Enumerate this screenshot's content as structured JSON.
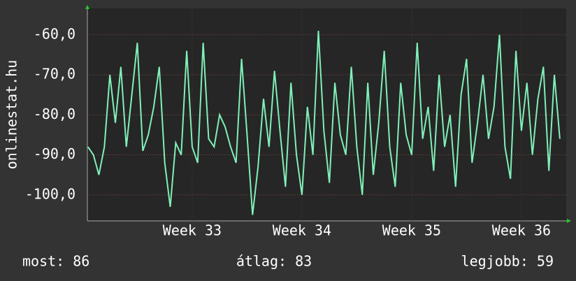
{
  "chart_data": {
    "type": "line",
    "y_label": "onlinestat.hu",
    "x": [
      32.55,
      32.6,
      32.65,
      32.7,
      32.75,
      32.8,
      32.85,
      32.9,
      32.95,
      33,
      33.05,
      33.1,
      33.15,
      33.2,
      33.25,
      33.3,
      33.35,
      33.4,
      33.45,
      33.5,
      33.55,
      33.6,
      33.65,
      33.7,
      33.75,
      33.8,
      33.85,
      33.9,
      33.95,
      34,
      34.05,
      34.1,
      34.15,
      34.2,
      34.25,
      34.3,
      34.35,
      34.4,
      34.45,
      34.5,
      34.55,
      34.6,
      34.65,
      34.7,
      34.75,
      34.8,
      34.85,
      34.9,
      34.95,
      35,
      35.05,
      35.1,
      35.15,
      35.2,
      35.25,
      35.3,
      35.35,
      35.4,
      35.45,
      35.5,
      35.55,
      35.6,
      35.65,
      35.7,
      35.75,
      35.8,
      35.85,
      35.9,
      35.95,
      36,
      36.05,
      36.1,
      36.15,
      36.2,
      36.25,
      36.3,
      36.35,
      36.4,
      36.45,
      36.5,
      36.55,
      36.6,
      36.65,
      36.7,
      36.75,
      36.8,
      36.85
    ],
    "series": [
      {
        "color": "#7ff0b8",
        "values": [
          -88,
          -90,
          -95,
          -88,
          -70,
          -82,
          -68,
          -88,
          -75,
          -62,
          -89,
          -85,
          -78,
          -68,
          -92,
          -103,
          -87,
          -90,
          -64,
          -88,
          -92,
          -62,
          -86,
          -88,
          -80,
          -83,
          -88,
          -92,
          -66,
          -85,
          -105,
          -93,
          -76,
          -88,
          -69,
          -84,
          -98,
          -72,
          -90,
          -100,
          -78,
          -90,
          -59,
          -84,
          -97,
          -72,
          -85,
          -90,
          -68,
          -88,
          -100,
          -72,
          -95,
          -82,
          -64,
          -88,
          -98,
          -72,
          -85,
          -90,
          -62,
          -86,
          -78,
          -94,
          -70,
          -88,
          -80,
          -98,
          -75,
          -66,
          -92,
          -82,
          -70,
          -86,
          -78,
          -60,
          -88,
          -96,
          -64,
          -84,
          -72,
          -90,
          -76,
          -68,
          -94,
          -70,
          -86
        ]
      }
    ],
    "xlim": [
      32.545,
      36.908
    ],
    "xticks": [
      {
        "value": 33.5,
        "label": "Week 33"
      },
      {
        "value": 34.5,
        "label": "Week 34"
      },
      {
        "value": 35.5,
        "label": "Week 35"
      },
      {
        "value": 36.5,
        "label": "Week 36"
      }
    ],
    "ylim": [
      -106.5,
      -53.4
    ],
    "yticks": [
      {
        "value": -60,
        "label": "-60,0"
      },
      {
        "value": -70,
        "label": "-70,0"
      },
      {
        "value": -80,
        "label": "-80,0"
      },
      {
        "value": -90,
        "label": "-90,0"
      },
      {
        "value": -100,
        "label": "-100,0"
      }
    ],
    "grid": true,
    "footer": [
      "most: 86",
      "átlag: 83",
      "legjobb: 59"
    ]
  }
}
